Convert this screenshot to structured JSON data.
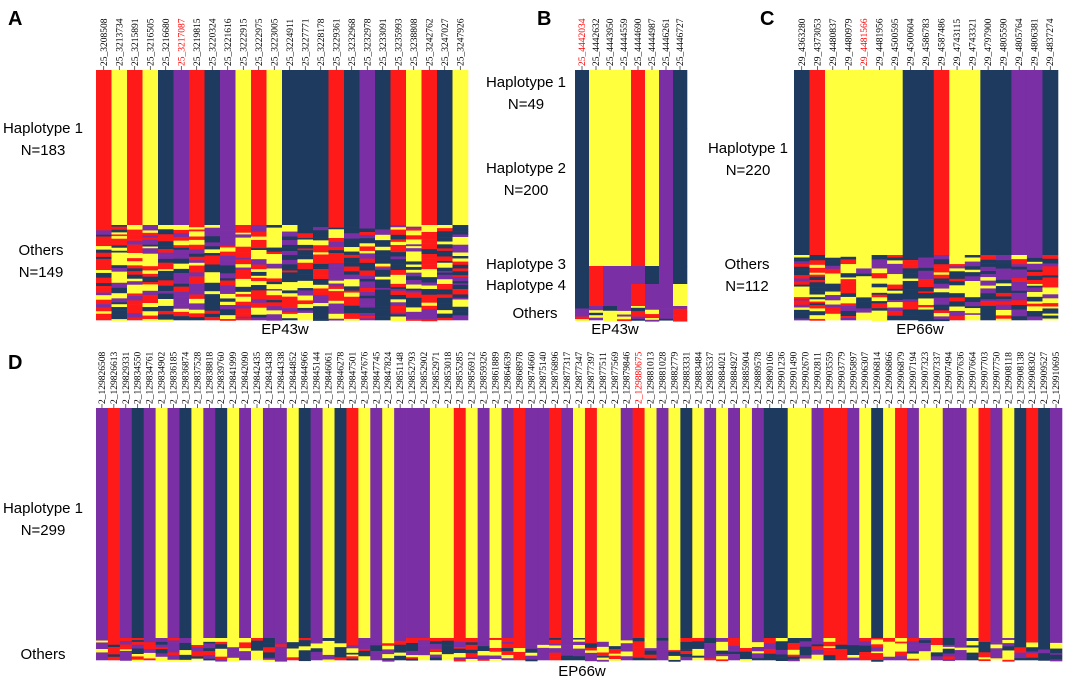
{
  "colors": {
    "yellow": "#ffff3d",
    "red": "#ff1a1a",
    "navy": "#1f3a5f",
    "purple": "#7a2fa4",
    "highlight": "#ff0000"
  },
  "panels": [
    {
      "letter": "A",
      "xlabel": "EP43w",
      "groups": [
        {
          "name": "Haplotype 1",
          "n": "N=183"
        },
        {
          "name": "Others",
          "n": "N=149"
        }
      ],
      "highlight_index": 5,
      "prefix": "25_",
      "columns": [
        "3208508",
        "3213734",
        "3215891",
        "3216505",
        "3216680",
        "3217087",
        "3219815",
        "3220324",
        "3221616",
        "3222915",
        "3222975",
        "3223005",
        "3224911",
        "3227771",
        "3228178",
        "3229361",
        "3232968",
        "3232978",
        "3233091",
        "3235993",
        "3238808",
        "3242762",
        "3247027",
        "3247926"
      ],
      "major": [
        "R",
        "Y",
        "R",
        "Y",
        "N",
        "P",
        "R",
        "N",
        "P",
        "Y",
        "R",
        "Y",
        "N",
        "N",
        "N",
        "R",
        "N",
        "P",
        "N",
        "R",
        "Y",
        "R",
        "N",
        "Y"
      ]
    },
    {
      "letter": "B",
      "xlabel": "EP43w",
      "groups": [
        {
          "name": "Haplotype 1",
          "n": "N=49"
        },
        {
          "name": "Haplotype 2",
          "n": "N=200"
        },
        {
          "name": "Haplotype 3",
          "n": ""
        },
        {
          "name": "Haplotype 4",
          "n": ""
        },
        {
          "name": "Others",
          "n": ""
        }
      ],
      "highlight_index": 0,
      "prefix": "25_",
      "columns": [
        "4442034",
        "4442632",
        "4443950",
        "4444559",
        "4444690",
        "4444987",
        "4446261",
        "4446727"
      ],
      "major": [
        "N",
        "Y",
        "Y",
        "Y",
        "R",
        "Y",
        "P",
        "N"
      ]
    },
    {
      "letter": "C",
      "xlabel": "EP66w",
      "groups": [
        {
          "name": "Haplotype 1",
          "n": "N=220"
        },
        {
          "name": "Others",
          "n": "N=112"
        }
      ],
      "highlight_index": 4,
      "prefix": "29_",
      "columns": [
        "4363280",
        "4373053",
        "4480837",
        "4480979",
        "4481566",
        "4481956",
        "4500595",
        "4500604",
        "4586783",
        "4587486",
        "4743115",
        "4743321",
        "4797900",
        "4805590",
        "4805764",
        "4806381",
        "4837274"
      ],
      "major": [
        "N",
        "R",
        "Y",
        "Y",
        "Y",
        "Y",
        "Y",
        "N",
        "N",
        "R",
        "Y",
        "Y",
        "N",
        "N",
        "P",
        "P",
        "N"
      ]
    },
    {
      "letter": "D",
      "xlabel": "EP66w",
      "groups": [
        {
          "name": "Haplotype 1",
          "n": "N=299"
        },
        {
          "name": "Others",
          "n": ""
        }
      ],
      "highlight_index": 45,
      "prefix": "2_",
      "columns": [
        "129826508",
        "129826613",
        "129829331",
        "129834550",
        "129834761",
        "129834902",
        "129836185",
        "129836874",
        "129837528",
        "129838818",
        "129839760",
        "129841999",
        "129842090",
        "129842435",
        "129843438",
        "129844338",
        "129844852",
        "129844966",
        "129845144",
        "129846061",
        "129846278",
        "129847501",
        "129847676",
        "129847745",
        "129847824",
        "129851148",
        "129852793",
        "129852902",
        "129852971",
        "129853018",
        "129855285",
        "129856912",
        "129859326",
        "129861889",
        "129864639",
        "129868978",
        "129874660",
        "129875140",
        "129876896",
        "129877317",
        "129877347",
        "129877397",
        "129877511",
        "129877569",
        "129879846",
        "129880675",
        "129881013",
        "129881028",
        "129882779",
        "129883331",
        "129883484",
        "129883537",
        "129884021",
        "129884927",
        "129885904",
        "129889578",
        "129890106",
        "129901236",
        "129901490",
        "129902670",
        "129902811",
        "129903559",
        "129903779",
        "129905897",
        "129906307",
        "129906814",
        "129906866",
        "129906879",
        "129907194",
        "129907323",
        "129907337",
        "129907494",
        "129907636",
        "129907664",
        "129907703",
        "129907750",
        "129908118",
        "129908138",
        "129908302",
        "129909527",
        "129910695"
      ],
      "major": "PRPNPYPNYPNYPYPPYNPYNRYPYPPPYYRYPYPRPPRPYRYYPRYPYNYPYPYPNNYYPRRPYNYRPYYPPYRPYNRNP"
    }
  ]
}
